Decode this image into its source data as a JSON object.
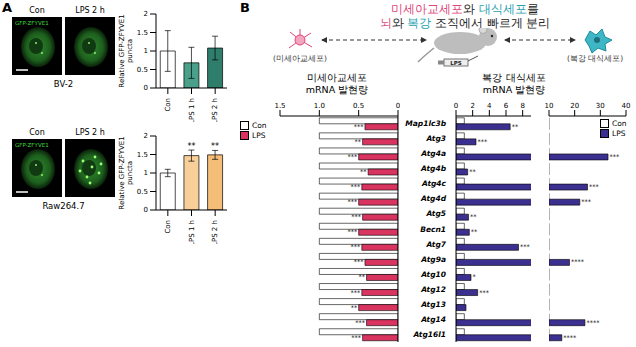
{
  "chart_data": [
    {
      "type": "bar",
      "ylabel": "Relative GFP-ZFYVE1 puncta",
      "categories": [
        "Con",
        "LPS 1 h",
        "LPS 2 h"
      ],
      "values": [
        1.0,
        0.68,
        1.08
      ],
      "errors": [
        0.55,
        0.42,
        0.32
      ],
      "colors": [
        "#ffffff",
        "#4aa08a",
        "#2f7d6b"
      ],
      "ylim": [
        0,
        2
      ],
      "yticks": [
        0,
        0.5,
        1,
        1.5,
        2
      ]
    },
    {
      "type": "bar",
      "ylabel": "Relative GFP-ZFYVE1 puncta",
      "categories": [
        "Con",
        "LPS 1 h",
        "LPS 2 h"
      ],
      "values": [
        1.0,
        1.47,
        1.49
      ],
      "errors": [
        0.1,
        0.15,
        0.12
      ],
      "annotations": [
        null,
        "**",
        "**"
      ],
      "colors": [
        "#ffffff",
        "#f8cf98",
        "#f4bd78"
      ],
      "ylim": [
        0,
        2
      ],
      "yticks": [
        0,
        0.5,
        1,
        1.5,
        2
      ]
    },
    {
      "type": "bar",
      "orientation": "horizontal",
      "title": "미세아교세포 mRNA 발현량",
      "categories": [
        "Map1lc3b",
        "Atg3",
        "Atg4a",
        "Atg4b",
        "Atg4c",
        "Atg4d",
        "Atg5",
        "Becn1",
        "Atg7",
        "Atg9a",
        "Atg10",
        "Atg12",
        "Atg13",
        "Atg14",
        "Atg16l1"
      ],
      "series": [
        {
          "name": "Con",
          "color": "#ffffff",
          "values": [
            1,
            1,
            1,
            1,
            1,
            1,
            1,
            1,
            1,
            1,
            1,
            1,
            1,
            1,
            1
          ]
        },
        {
          "name": "LPS",
          "color": "#d8345f",
          "values": [
            0.42,
            0.45,
            0.5,
            0.38,
            0.46,
            0.5,
            0.45,
            0.5,
            0.46,
            0.42,
            0.4,
            0.46,
            0.5,
            0.4,
            0.45
          ],
          "annotations": [
            "***",
            "**",
            "***",
            "**",
            "***",
            "***",
            "***",
            "***",
            "***",
            "***",
            "**",
            "***",
            "**",
            "***",
            "***"
          ]
        }
      ],
      "xlim": [
        0,
        1.5
      ],
      "xticks": [
        0,
        0.5,
        {
          "value": 1,
          "label": "1.0"
        },
        1.5
      ],
      "legend": "top-left"
    },
    {
      "type": "bar",
      "orientation": "horizontal",
      "title": "복강 대식세포 mRNA 발현량",
      "categories": [
        "Map1lc3b",
        "Atg3",
        "Atg4a",
        "Atg4b",
        "Atg4c",
        "Atg4d",
        "Atg5",
        "Becn1",
        "Atg7",
        "Atg9a",
        "Atg10",
        "Atg12",
        "Atg13",
        "Atg14",
        "Atg16l1"
      ],
      "series": [
        {
          "name": "Con",
          "color": "#ffffff",
          "values": [
            1,
            1,
            1,
            1,
            1,
            1,
            1,
            1,
            1,
            1,
            1,
            1,
            1,
            1,
            1
          ]
        },
        {
          "name": "LPS",
          "color": "#3b2f8f",
          "values": [
            6.5,
            2.4,
            33,
            1.4,
            25,
            22,
            1.5,
            1.6,
            7.5,
            18,
            1.8,
            2.6,
            1.2,
            24,
            15
          ],
          "annotations": [
            "**",
            "***",
            "***",
            "**",
            "***",
            "***",
            "**",
            "**",
            "***",
            "****",
            "*",
            "***",
            null,
            "****",
            "****"
          ]
        }
      ],
      "xlim": [
        0,
        40
      ],
      "x_break": [
        9,
        10
      ],
      "xticks": [
        0,
        2,
        4,
        6,
        8,
        10,
        20,
        30,
        40
      ],
      "legend": "top-right"
    }
  ],
  "figure": {
    "panel_labels": [
      "A",
      "B"
    ],
    "images": [
      {
        "cell_line": "BV-2",
        "channel": "GFP-ZFYVE1",
        "conditions": [
          "Con",
          "LPS 2 h"
        ]
      },
      {
        "cell_line": "Raw264.7",
        "channel": "GFP-ZFYVE1",
        "conditions": [
          "Con",
          "LPS 2 h"
        ]
      }
    ],
    "diagram": {
      "title_lines": [
        [
          {
            "text": "미세아교세포",
            "color": "#e0457b"
          },
          {
            "text": "와 ",
            "color": "#222222"
          },
          {
            "text": "대식세포",
            "color": "#2a9fb0"
          },
          {
            "text": "를",
            "color": "#222222"
          }
        ],
        [
          {
            "text": "뇌",
            "color": "#e0457b"
          },
          {
            "text": "와 ",
            "color": "#222222"
          },
          {
            "text": "복강",
            "color": "#2a9fb0"
          },
          {
            "text": " 조직에서 빠르게 분리",
            "color": "#222222"
          }
        ]
      ],
      "microglia_label": "(미세아교세포)",
      "macrophage_label": "(복강 대식세포)",
      "injection_label": "LPS"
    }
  }
}
